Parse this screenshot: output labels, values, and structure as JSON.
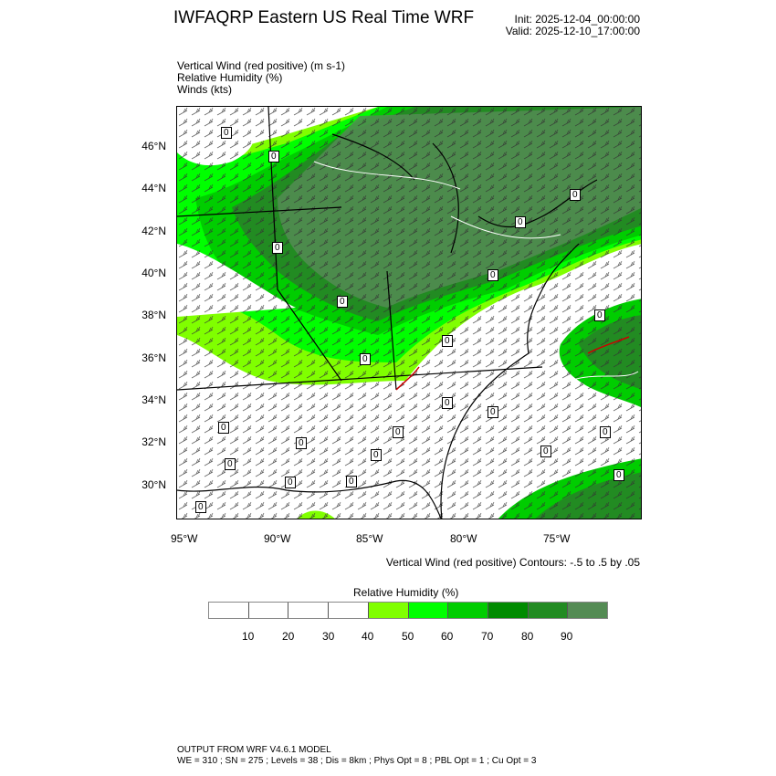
{
  "header": {
    "title": "IWFAQRP Eastern US Real Time WRF",
    "init": "Init: 2025-12-04_00:00:00",
    "valid": "Valid: 2025-12-10_17:00:00"
  },
  "fields": [
    "Vertical Wind (red positive)   (m s-1)",
    "Relative Humidity   (%)",
    "Winds   (kts)"
  ],
  "map": {
    "lat_ticks": [
      "46°N",
      "44°N",
      "42°N",
      "40°N",
      "38°N",
      "36°N",
      "34°N",
      "32°N",
      "30°N"
    ],
    "lon_ticks": [
      "95°W",
      "90°W",
      "85°W",
      "80°W",
      "75°W"
    ],
    "contour_label": "0",
    "contour_note": "Vertical Wind (red positive) Contours: -.5 to .5 by .05"
  },
  "legend": {
    "title": "Relative Humidity   (%)",
    "colors": [
      "#ffffff",
      "#ffffff",
      "#ffffff",
      "#ffffff",
      "#80ff00",
      "#00ff00",
      "#00cd00",
      "#008b00",
      "#228b22",
      "#548b54"
    ],
    "labels": [
      "10",
      "20",
      "30",
      "40",
      "50",
      "60",
      "70",
      "80",
      "90"
    ]
  },
  "footer": {
    "line1": "OUTPUT FROM WRF V4.6.1 MODEL",
    "line2": "WE = 310 ; SN = 275 ; Levels = 38 ; Dis = 8km ; Phys Opt = 8 ; PBL Opt = 1 ; Cu Opt = 3"
  }
}
